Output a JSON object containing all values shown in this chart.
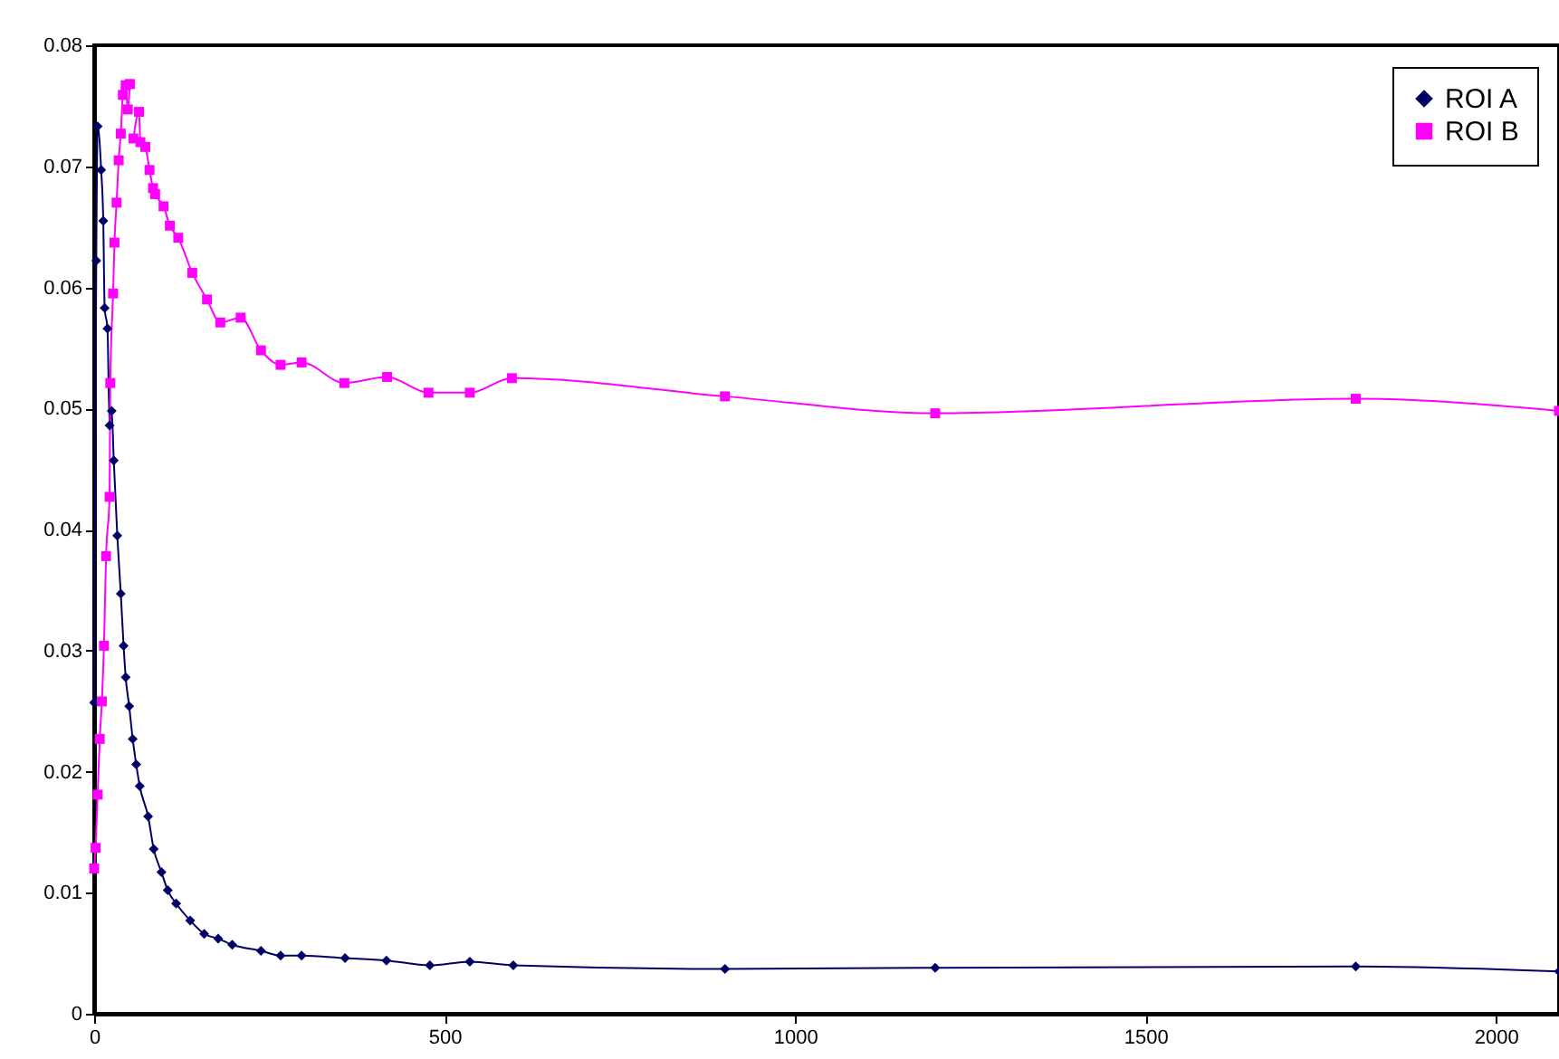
{
  "chart_data": {
    "type": "line",
    "xlim": [
      0,
      2090
    ],
    "xticks": [
      0,
      500,
      1000,
      1500,
      2000
    ],
    "ylim": [
      0,
      0.08
    ],
    "yticks": [
      0,
      0.01,
      0.02,
      0.03,
      0.04,
      0.05,
      0.06,
      0.07,
      0.08
    ],
    "grid": false,
    "legend": "top right",
    "line_style": "solid",
    "series": [
      {
        "name": "ROI A",
        "color": "#000066",
        "marker": "diamond",
        "x": [
          0,
          3,
          5,
          10,
          13,
          15,
          19,
          22,
          25,
          28,
          33,
          38,
          42,
          45,
          50,
          55,
          60,
          65,
          77,
          85,
          96,
          105,
          117,
          137,
          157,
          177,
          197,
          238,
          266,
          296,
          358,
          417,
          479,
          536,
          598,
          900,
          1200,
          1800,
          2090
        ],
        "values": [
          0.0257,
          0.0622,
          0.0733,
          0.0697,
          0.0655,
          0.0583,
          0.0566,
          0.0486,
          0.0498,
          0.0457,
          0.0395,
          0.0347,
          0.0304,
          0.0278,
          0.0254,
          0.0227,
          0.0206,
          0.0188,
          0.0163,
          0.0136,
          0.0117,
          0.0102,
          0.0091,
          0.0077,
          0.0066,
          0.0062,
          0.0057,
          0.0052,
          0.0048,
          0.0048,
          0.0046,
          0.0044,
          0.004,
          0.0043,
          0.004,
          0.0037,
          0.0038,
          0.0039,
          0.0035
        ]
      },
      {
        "name": "ROI B",
        "color": "#ff00ff",
        "marker": "square",
        "x": [
          0,
          2,
          5,
          8,
          11,
          14,
          17,
          22,
          23,
          27,
          29,
          32,
          35,
          38,
          41,
          45,
          48,
          51,
          54,
          56,
          64,
          66,
          73,
          79,
          84,
          87,
          99,
          108,
          120,
          140,
          161,
          180,
          209,
          238,
          266,
          296,
          357,
          418,
          477,
          536,
          596,
          900,
          1200,
          1800,
          2090
        ],
        "values": [
          0.012,
          0.0137,
          0.0181,
          0.0227,
          0.0258,
          0.0304,
          0.0378,
          0.0427,
          0.0521,
          0.0595,
          0.0637,
          0.067,
          0.0705,
          0.0727,
          0.0759,
          0.0767,
          0.0747,
          0.0768,
          null,
          0.0723,
          0.0745,
          0.072,
          0.0716,
          0.0697,
          0.0682,
          0.0677,
          0.0667,
          0.0651,
          0.0641,
          0.0612,
          0.059,
          0.0571,
          0.0575,
          0.0548,
          0.0536,
          0.0538,
          0.0521,
          0.0526,
          0.0513,
          0.0513,
          0.0525,
          0.051,
          0.0496,
          0.0508,
          0.0498
        ]
      }
    ]
  }
}
